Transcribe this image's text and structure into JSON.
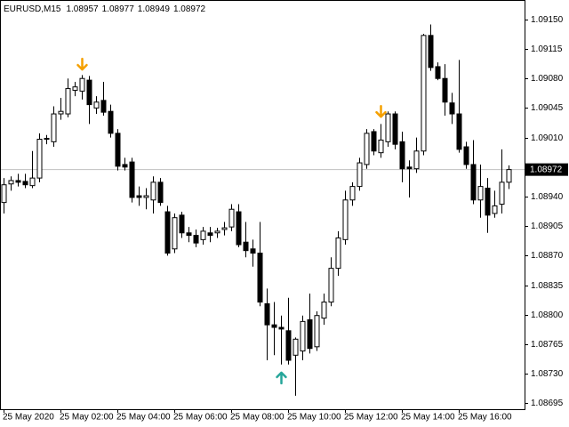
{
  "chart_data": {
    "type": "candlestick",
    "title": "EURUSD,M15",
    "categories": [
      "25 May 2020",
      null,
      null,
      null,
      null,
      null,
      null,
      null,
      "25 May 02:00",
      null,
      null,
      null,
      null,
      null,
      null,
      null,
      "25 May 04:00",
      null,
      null,
      null,
      null,
      null,
      null,
      null,
      "25 May 06:00",
      null,
      null,
      null,
      null,
      null,
      null,
      null,
      "25 May 08:00",
      null,
      null,
      null,
      null,
      null,
      null,
      null,
      "25 May 10:00",
      null,
      null,
      null,
      null,
      null,
      null,
      null,
      "25 May 12:00",
      null,
      null,
      null,
      null,
      null,
      null,
      null,
      "25 May 14:00",
      null,
      null,
      null,
      null,
      null,
      null,
      null,
      "25 May 16:00",
      null,
      null,
      null,
      null,
      null,
      null,
      null
    ],
    "open": [
      1.08933,
      1.08955,
      1.08959,
      1.08958,
      1.08953,
      1.08962,
      1.09008,
      1.09005,
      1.09038,
      1.09038,
      1.09066,
      1.09065,
      1.09078,
      1.09045,
      1.09054,
      1.09041,
      1.09015,
      1.08978,
      1.08981,
      1.08941,
      1.08939,
      1.08936,
      1.08957,
      1.08922,
      1.08878,
      1.08918,
      1.08897,
      1.08894,
      1.08889,
      1.08897,
      1.08897,
      1.08901,
      1.08904,
      1.08922,
      1.08886,
      1.08878,
      1.08873,
      1.08813,
      1.08788,
      1.08785,
      1.08781,
      1.08752,
      1.08757,
      1.08794,
      1.08762,
      1.08796,
      1.08815,
      1.08855,
      1.08889,
      1.08936,
      1.08952,
      1.08978,
      1.09017,
      1.08992,
      1.09005,
      1.09038,
      1.09005,
      1.08975,
      1.08973,
      1.08994,
      1.09131,
      1.09094,
      1.0908,
      1.09051,
      1.09038,
      1.08999,
      1.08978,
      1.08936,
      1.0895,
      1.0892,
      1.08931,
      1.08957
    ],
    "high": [
      1.08962,
      1.08964,
      1.08967,
      1.08967,
      1.08994,
      1.09015,
      1.09013,
      1.09047,
      1.09057,
      1.0908,
      1.09076,
      1.09084,
      1.09083,
      1.09059,
      1.09076,
      1.09049,
      1.0902,
      1.08986,
      1.08986,
      1.08952,
      1.0895,
      1.08964,
      1.08962,
      1.08929,
      1.0892,
      1.08922,
      1.08904,
      1.08901,
      1.08904,
      1.08904,
      1.08903,
      1.0891,
      1.08931,
      1.08931,
      1.0891,
      1.08889,
      1.0891,
      1.08831,
      1.08815,
      1.08799,
      1.0882,
      1.08773,
      1.08799,
      1.08825,
      1.08804,
      1.08825,
      1.08868,
      1.08899,
      1.08947,
      1.08957,
      1.08986,
      1.0902,
      1.0902,
      1.09026,
      1.09041,
      1.09041,
      1.09017,
      1.08983,
      1.0901,
      1.09133,
      1.09144,
      1.09099,
      1.09097,
      1.09063,
      1.09102,
      1.09005,
      1.09007,
      1.08978,
      1.08962,
      1.08947,
      1.08996,
      1.08977
    ],
    "low": [
      1.0892,
      1.08947,
      1.08952,
      1.0895,
      1.0895,
      1.08957,
      1.09002,
      1.08999,
      1.09031,
      1.09034,
      1.09059,
      1.09055,
      1.09026,
      1.09038,
      1.09036,
      1.0901,
      1.08971,
      1.08971,
      1.08933,
      1.08929,
      1.08925,
      1.0892,
      1.08929,
      1.0887,
      1.08873,
      1.08891,
      1.08886,
      1.0888,
      1.08883,
      1.08886,
      1.08891,
      1.08894,
      1.08899,
      1.0888,
      1.08868,
      1.08857,
      1.0881,
      1.08746,
      1.08752,
      1.08741,
      1.08741,
      1.08704,
      1.08746,
      1.08754,
      1.08757,
      1.08788,
      1.0881,
      1.08846,
      1.08883,
      1.08929,
      1.08947,
      1.08973,
      1.08989,
      1.08986,
      1.08999,
      1.08996,
      1.08957,
      1.08939,
      1.08968,
      1.08989,
      1.09089,
      1.09078,
      1.09036,
      1.09026,
      1.08992,
      1.08973,
      1.08931,
      1.08915,
      1.08897,
      1.08915,
      1.0892,
      1.08949
    ],
    "close": [
      1.08954,
      1.08959,
      1.08957,
      1.08954,
      1.08962,
      1.09008,
      1.09009,
      1.09038,
      1.09041,
      1.09068,
      1.0907,
      1.0908,
      1.09049,
      1.09052,
      1.0904,
      1.09015,
      1.08976,
      1.08975,
      1.08939,
      1.08939,
      1.08941,
      1.08957,
      1.08933,
      1.08873,
      1.08915,
      1.08897,
      1.08894,
      1.08885,
      1.08899,
      1.08894,
      1.08899,
      1.08903,
      1.08925,
      1.08883,
      1.08876,
      1.08873,
      1.08815,
      1.08788,
      1.08785,
      1.08783,
      1.08746,
      1.08771,
      1.08792,
      1.0876,
      1.08799,
      1.08815,
      1.08855,
      1.08891,
      1.08936,
      1.08952,
      1.0898,
      1.09015,
      1.08994,
      1.09007,
      1.09038,
      1.09002,
      1.08973,
      1.08973,
      1.08994,
      1.09131,
      1.09093,
      1.0908,
      1.09052,
      1.09038,
      1.08996,
      1.08978,
      1.08936,
      1.08952,
      1.08918,
      1.08929,
      1.08957,
      1.08972
    ],
    "down_arrows": {
      "color": "#f5a000",
      "values": [
        null,
        null,
        null,
        null,
        null,
        null,
        null,
        null,
        null,
        null,
        null,
        1.09097,
        null,
        null,
        null,
        null,
        null,
        null,
        null,
        null,
        null,
        null,
        null,
        null,
        null,
        null,
        null,
        null,
        null,
        null,
        null,
        null,
        null,
        null,
        null,
        null,
        null,
        null,
        null,
        null,
        null,
        null,
        null,
        null,
        null,
        null,
        null,
        null,
        null,
        null,
        null,
        null,
        null,
        1.09041,
        null,
        null,
        null,
        null,
        null,
        null,
        null,
        null,
        null,
        null,
        null,
        null,
        null,
        null,
        null,
        null,
        null,
        null
      ]
    },
    "up_arrows": {
      "color": "#26a69a",
      "values": [
        null,
        null,
        null,
        null,
        null,
        null,
        null,
        null,
        null,
        null,
        null,
        null,
        null,
        null,
        null,
        null,
        null,
        null,
        null,
        null,
        null,
        null,
        null,
        null,
        null,
        null,
        null,
        null,
        null,
        null,
        null,
        null,
        null,
        null,
        null,
        null,
        null,
        null,
        null,
        1.08725,
        null,
        null,
        null,
        null,
        null,
        null,
        null,
        null,
        null,
        null,
        null,
        null,
        null,
        null,
        null,
        null,
        null,
        null,
        null,
        null,
        null,
        null,
        null,
        null,
        null,
        null,
        null,
        null,
        null,
        null,
        null,
        null
      ]
    },
    "up_color": "#ffffff",
    "down_color": "#000000",
    "wick_color": "#000000",
    "price_line_color": "#c0c0c0",
    "ylim": [
      1.08688,
      1.09173
    ],
    "yticks": [
      {
        "value": 1.0915,
        "label": "1.09150"
      },
      1.09115,
      {
        "value": 1.0908,
        "label": "1.09080"
      },
      1.09045,
      {
        "value": 1.0901,
        "label": "1.09010"
      },
      {
        "value": 1.0894,
        "label": "1.08940"
      },
      1.08905,
      {
        "value": 1.0887,
        "label": "1.08870"
      },
      1.08835,
      {
        "value": 1.088,
        "label": "1.08800"
      },
      1.08765,
      {
        "value": 1.0873,
        "label": "1.08730"
      },
      1.08695
    ]
  }
}
